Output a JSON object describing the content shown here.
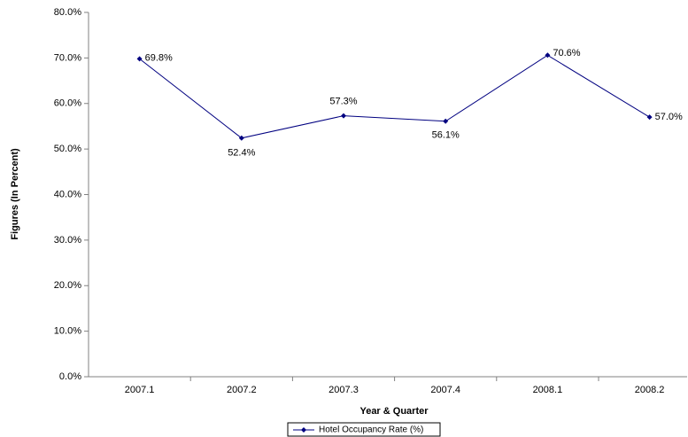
{
  "chart_data": {
    "type": "line",
    "x_label": "Year & Quarter",
    "y_label": "Figures (In Percent)",
    "categories": [
      "2007.1",
      "2007.2",
      "2007.3",
      "2007.4",
      "2008.1",
      "2008.2"
    ],
    "series": [
      {
        "name": "Hotel Occupancy Rate (%)",
        "color": "#000080",
        "values": [
          69.8,
          52.4,
          57.3,
          56.1,
          70.6,
          57.0
        ],
        "value_labels": [
          "69.8%",
          "52.4%",
          "57.3%",
          "56.1%",
          "70.6%",
          "57.0%"
        ]
      }
    ],
    "ylim": [
      0,
      80
    ],
    "yticks": [
      {
        "value": 0,
        "label": "0.0%"
      },
      {
        "value": 10,
        "label": "10.0%"
      },
      {
        "value": 20,
        "label": "20.0%"
      },
      {
        "value": 30,
        "label": "30.0%"
      },
      {
        "value": 40,
        "label": "40.0%"
      },
      {
        "value": 50,
        "label": "50.0%"
      },
      {
        "value": 60,
        "label": "60.0%"
      },
      {
        "value": 70,
        "label": "70.0%"
      },
      {
        "value": 80,
        "label": "80.0%"
      }
    ],
    "grid": false,
    "legend": "bottom"
  }
}
